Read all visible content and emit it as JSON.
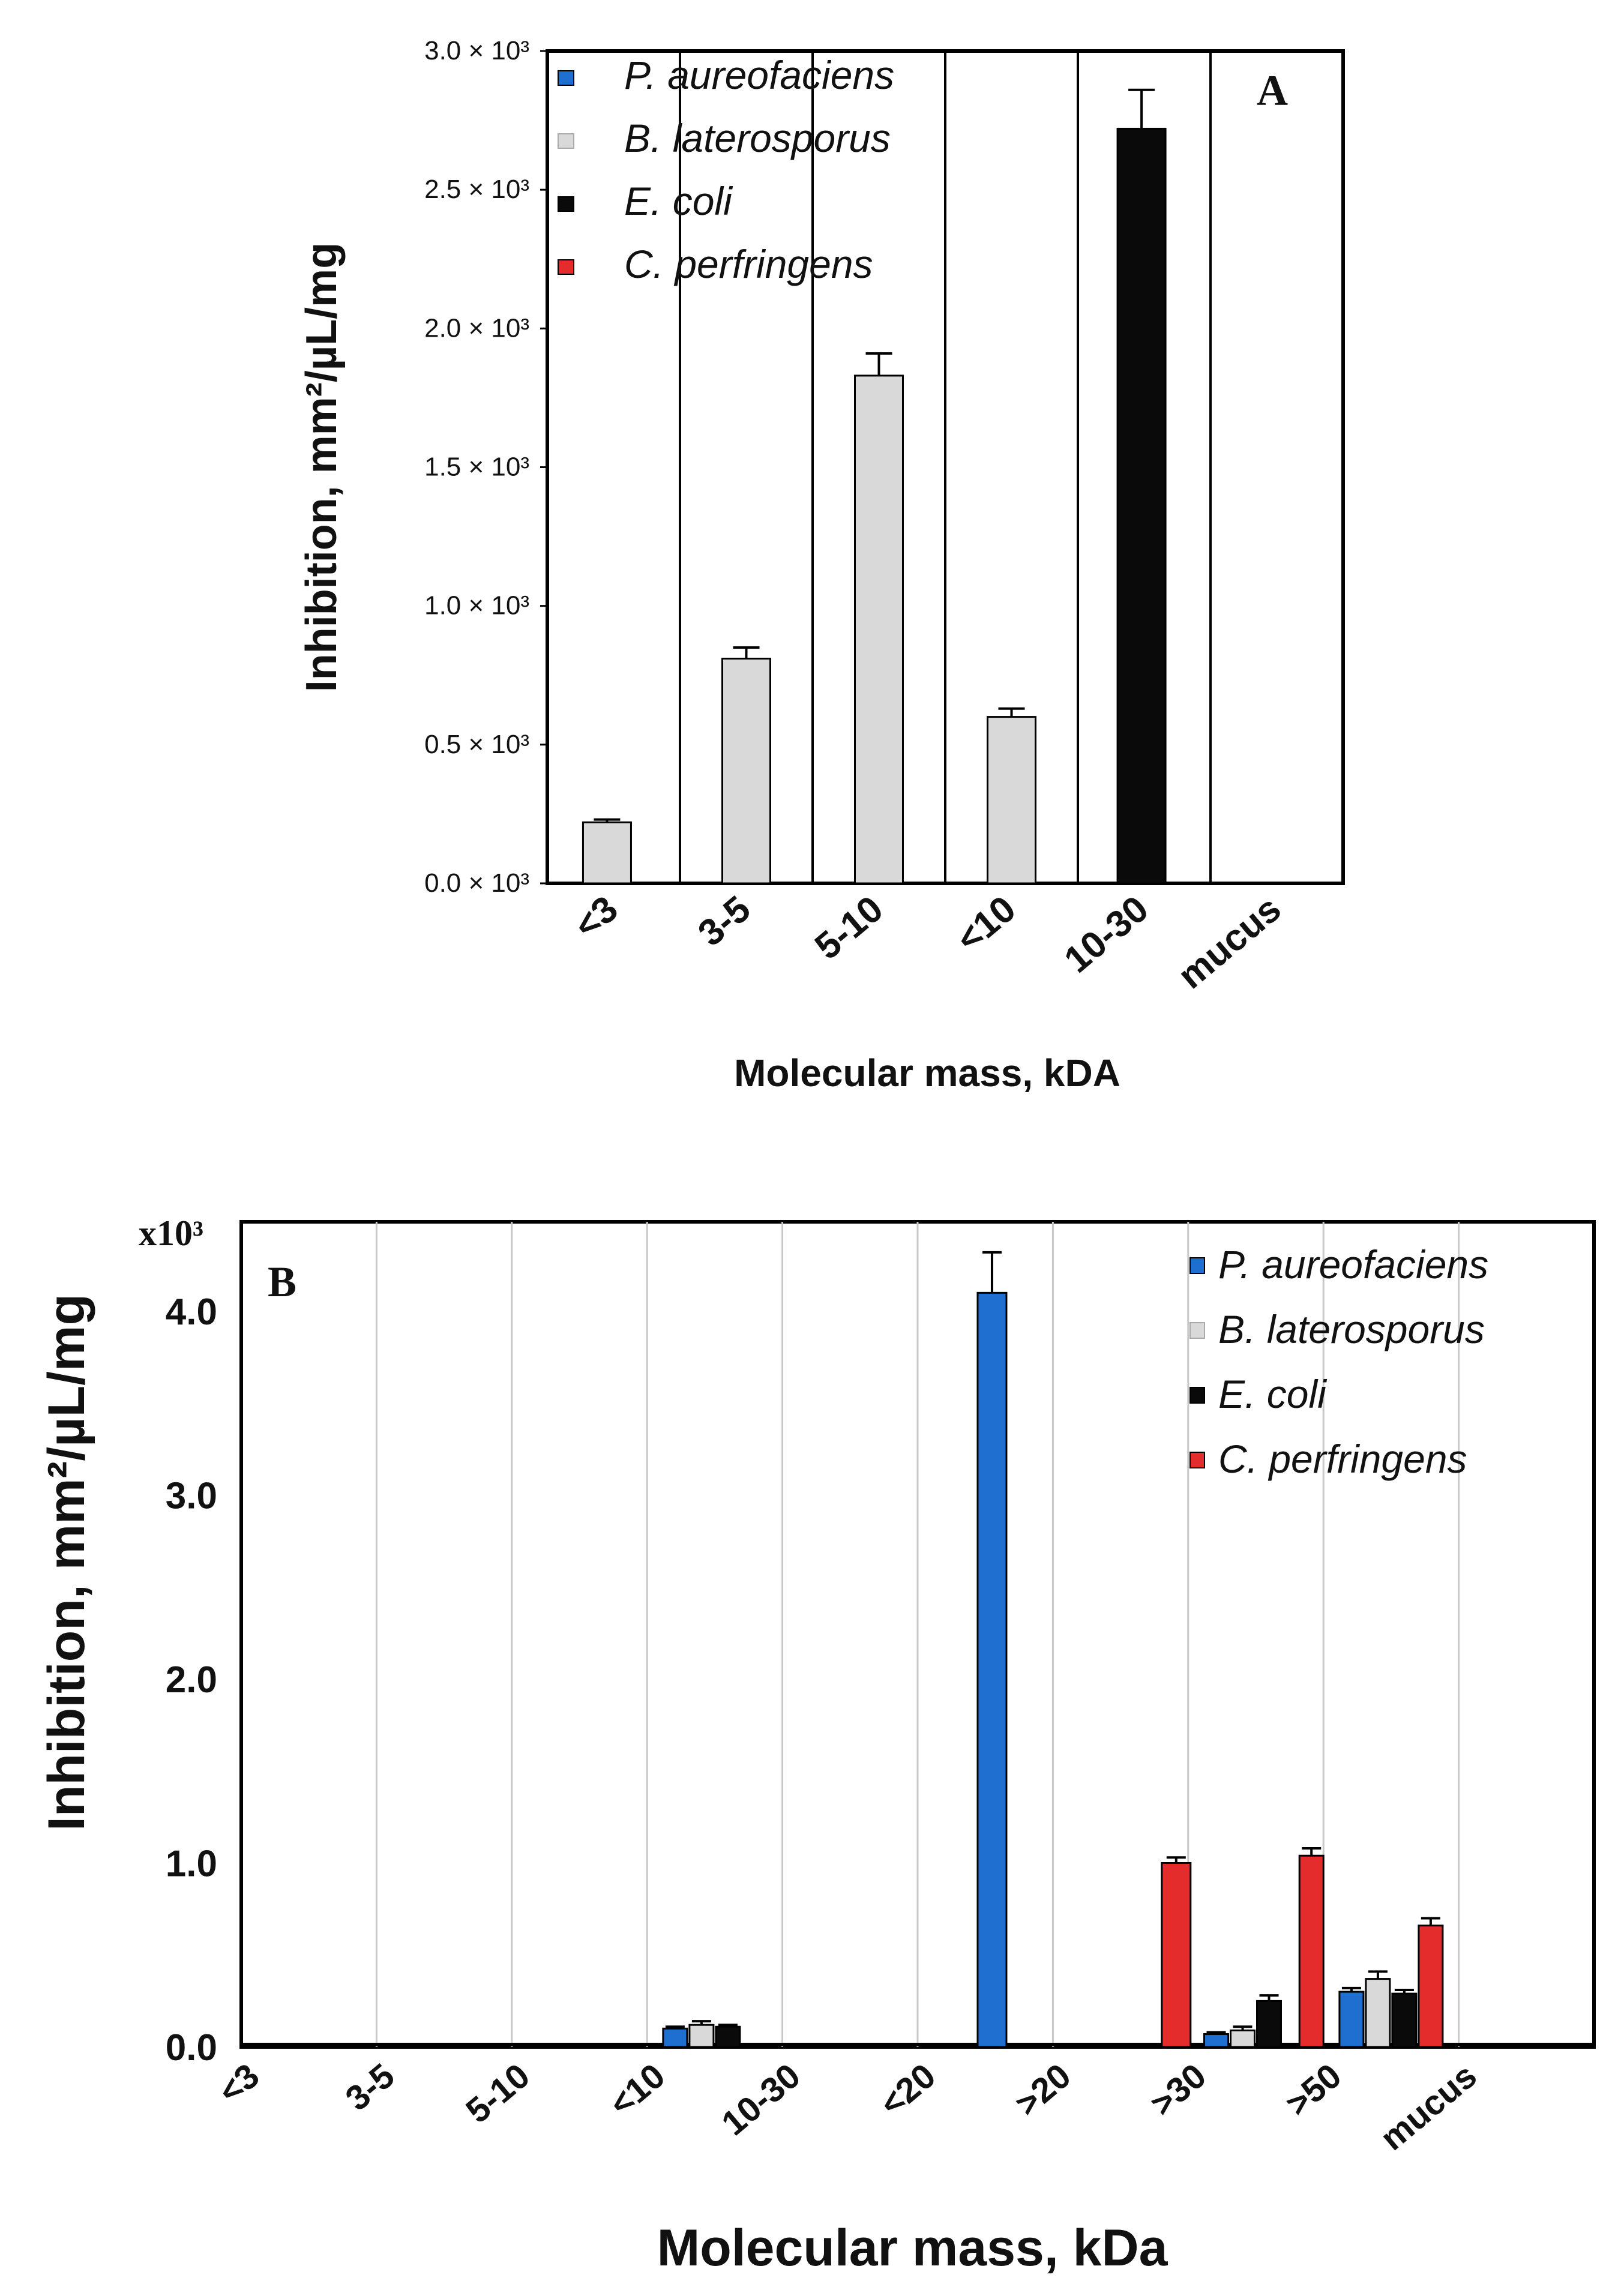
{
  "chart_data": [
    {
      "panel": "A",
      "type": "bar",
      "panel_label": "A",
      "categories": [
        "<3",
        "3-5",
        "5-10",
        "<10",
        "10-30",
        "mucus"
      ],
      "ylabel": "Inhibition, mm²/µL/mg",
      "xlabel": "Molecular mass, kDA",
      "ylim": [
        0,
        3.0
      ],
      "yticks": [
        {
          "value": 0.0,
          "label": "0.0 × 10³"
        },
        {
          "value": 0.5,
          "label": "0.5 × 10³"
        },
        {
          "value": 1.0,
          "label": "1.0 × 10³"
        },
        {
          "value": 1.5,
          "label": "1.5 × 10³"
        },
        {
          "value": 2.0,
          "label": "2.0 × 10³"
        },
        {
          "value": 2.5,
          "label": "2.5 × 10³"
        },
        {
          "value": 3.0,
          "label": "3.0 × 10³"
        }
      ],
      "legend": [
        "P. aureofaciens",
        "B. laterosporus",
        "E. coli",
        "C. perfringens"
      ],
      "legend_position": "top-left",
      "series": [
        {
          "name": "P. aureofaciens",
          "color": "#1f6fd1",
          "values": [
            0,
            0,
            0,
            0,
            0,
            0
          ],
          "errors": [
            0,
            0,
            0,
            0,
            0,
            0
          ]
        },
        {
          "name": "B. laterosporus",
          "color": "#d9d9d9",
          "values": [
            0.22,
            0.81,
            1.83,
            0.6,
            0,
            0
          ],
          "errors": [
            0.01,
            0.04,
            0.08,
            0.03,
            0,
            0
          ]
        },
        {
          "name": "E. coli",
          "color": "#0a0a0a",
          "values": [
            0,
            0,
            0,
            0,
            2.72,
            0
          ],
          "errors": [
            0,
            0,
            0,
            0,
            0.14,
            0
          ]
        },
        {
          "name": "C. perfringens",
          "color": "#e42c2c",
          "values": [
            0,
            0,
            0,
            0,
            0,
            0
          ],
          "errors": [
            0,
            0,
            0,
            0,
            0,
            0
          ]
        }
      ]
    },
    {
      "panel": "B",
      "type": "bar",
      "panel_label": "B",
      "categories": [
        "<3",
        "3-5",
        "5-10",
        "<10",
        "10-30",
        "<20",
        ">20",
        ">30",
        ">50",
        "mucus"
      ],
      "ylabel": "Inhibition, mm²/µL/mg",
      "xlabel": "Molecular mass, kDa",
      "multiplier": "x10³",
      "ylim": [
        0,
        4.5
      ],
      "yticks": [
        {
          "value": 0.0,
          "label": "0.0"
        },
        {
          "value": 1.0,
          "label": "1.0"
        },
        {
          "value": 2.0,
          "label": "2.0"
        },
        {
          "value": 3.0,
          "label": "3.0"
        },
        {
          "value": 4.0,
          "label": "4.0"
        }
      ],
      "legend": [
        "P. aureofaciens",
        "B. laterosporus",
        "E. coli",
        "C. perfringens"
      ],
      "legend_position": "top-right",
      "series": [
        {
          "name": "P. aureofaciens",
          "color": "#1f6fd1",
          "values": [
            0,
            0,
            0,
            0.1,
            0,
            4.1,
            0,
            0.07,
            0.3,
            0
          ],
          "errors": [
            0,
            0,
            0,
            0.01,
            0,
            0.22,
            0,
            0.01,
            0.02,
            0
          ]
        },
        {
          "name": "B. laterosporus",
          "color": "#d9d9d9",
          "values": [
            0,
            0,
            0,
            0.12,
            0,
            0,
            0,
            0.09,
            0.37,
            0
          ],
          "errors": [
            0,
            0,
            0,
            0.02,
            0,
            0,
            0,
            0.02,
            0.04,
            0
          ]
        },
        {
          "name": "E. coli",
          "color": "#0a0a0a",
          "values": [
            0,
            0,
            0,
            0.11,
            0,
            0,
            0,
            0.25,
            0.29,
            0
          ],
          "errors": [
            0,
            0,
            0,
            0.01,
            0,
            0,
            0,
            0.03,
            0.02,
            0
          ]
        },
        {
          "name": "C. perfringens",
          "color": "#e42c2c",
          "values": [
            0,
            0,
            0,
            0,
            0,
            0,
            1.0,
            1.04,
            0.66,
            0
          ],
          "errors": [
            0,
            0,
            0,
            0,
            0,
            0,
            0.03,
            0.04,
            0.04,
            0
          ]
        }
      ]
    }
  ]
}
